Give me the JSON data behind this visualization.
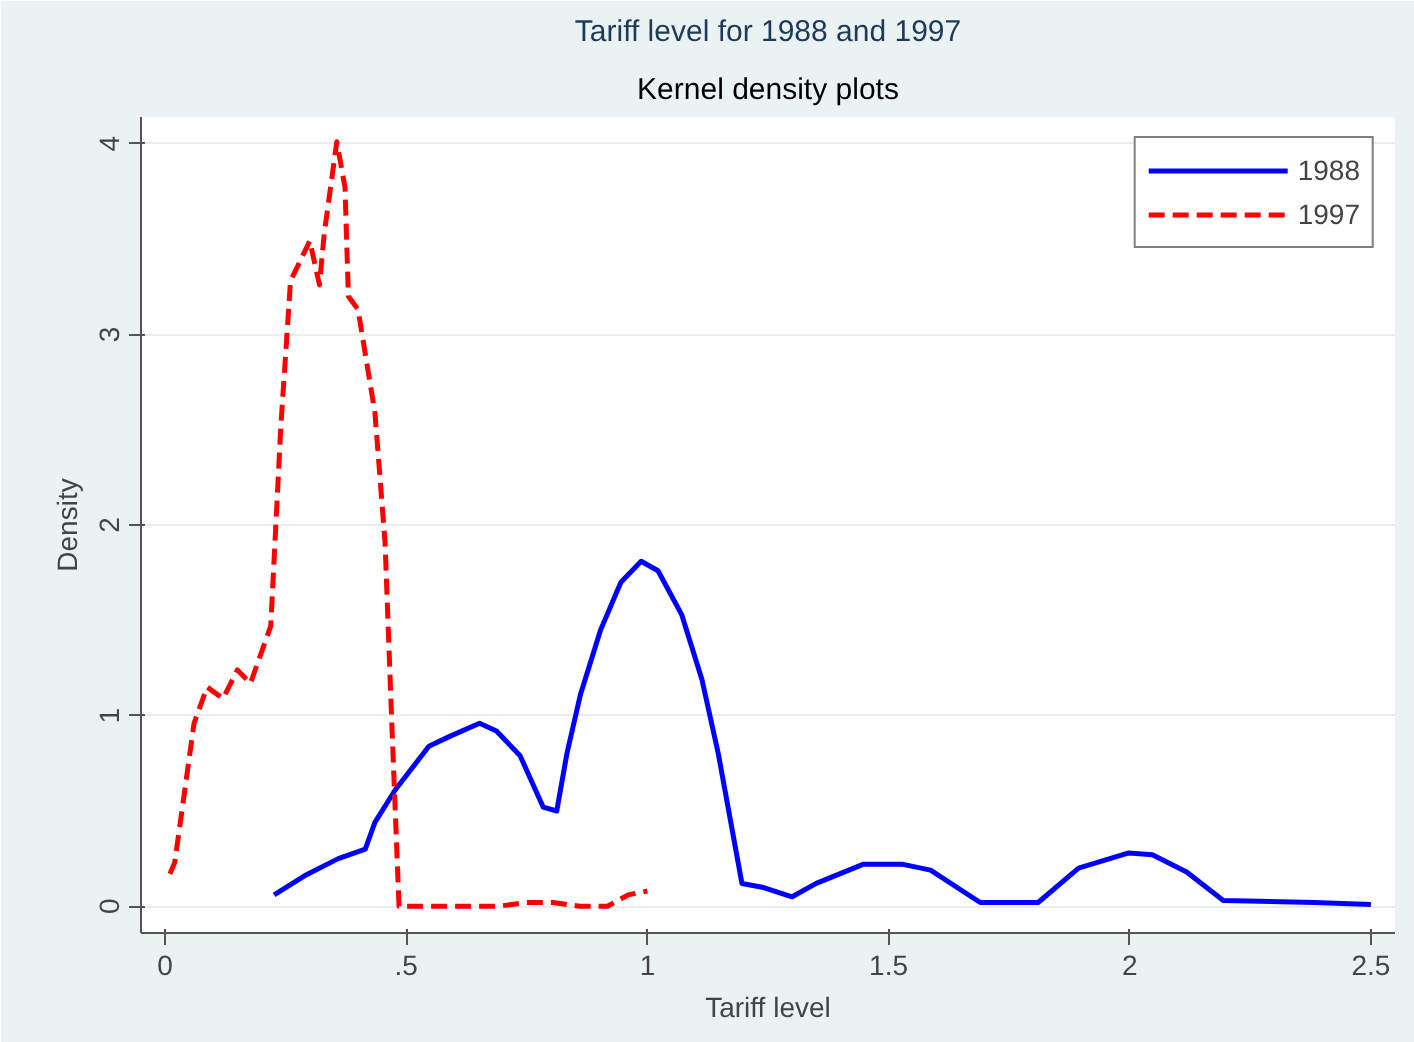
{
  "chart_data": {
    "type": "line",
    "title": "Tariff level for 1988 and 1997",
    "subtitle": "Kernel density plots",
    "xlabel": "Tariff level",
    "ylabel": "Density",
    "xlim": [
      -0.05,
      2.55
    ],
    "ylim": [
      -0.14,
      4.14
    ],
    "xticks": [
      0,
      {
        "value": 0.5,
        "label": ".5"
      },
      1,
      1.5,
      2,
      2.5
    ],
    "yticks": [
      0,
      1,
      2,
      3,
      4
    ],
    "grid": "y",
    "legend": "top right",
    "series": [
      {
        "name": "1988",
        "color": "#0000ff",
        "line_style": "solid",
        "x": [
          0.226,
          0.289,
          0.359,
          0.415,
          0.435,
          0.477,
          0.547,
          0.589,
          0.652,
          0.687,
          0.736,
          0.784,
          0.812,
          0.833,
          0.861,
          0.903,
          0.945,
          0.987,
          1.022,
          1.071,
          1.113,
          1.147,
          1.196,
          1.238,
          1.3,
          1.35,
          1.447,
          1.53,
          1.587,
          1.69,
          1.81,
          1.894,
          1.998,
          2.047,
          2.118,
          2.194,
          2.383,
          2.5
        ],
        "values": [
          0.06,
          0.16,
          0.25,
          0.3,
          0.44,
          0.61,
          0.84,
          0.89,
          0.96,
          0.92,
          0.79,
          0.52,
          0.5,
          0.8,
          1.11,
          1.45,
          1.7,
          1.81,
          1.76,
          1.53,
          1.19,
          0.8,
          0.12,
          0.1,
          0.05,
          0.12,
          0.22,
          0.22,
          0.19,
          0.02,
          0.02,
          0.2,
          0.28,
          0.27,
          0.18,
          0.03,
          0.02,
          0.01
        ]
      },
      {
        "name": "1997",
        "color": "#ff0000",
        "line_style": "dashed",
        "x": [
          0.01,
          0.02,
          0.06,
          0.087,
          0.12,
          0.15,
          0.177,
          0.219,
          0.24,
          0.26,
          0.3,
          0.32,
          0.33,
          0.356,
          0.373,
          0.38,
          0.4,
          0.435,
          0.456,
          0.47,
          0.485,
          0.69,
          0.75,
          0.805,
          0.86,
          0.917,
          0.96,
          1.0
        ],
        "values": [
          0.17,
          0.23,
          0.96,
          1.15,
          1.09,
          1.24,
          1.17,
          1.47,
          2.52,
          3.28,
          3.49,
          3.26,
          3.53,
          4.01,
          3.77,
          3.2,
          3.13,
          2.59,
          1.91,
          0.96,
          0,
          0,
          0.02,
          0.02,
          0,
          0,
          0.06,
          0.08
        ]
      }
    ]
  }
}
